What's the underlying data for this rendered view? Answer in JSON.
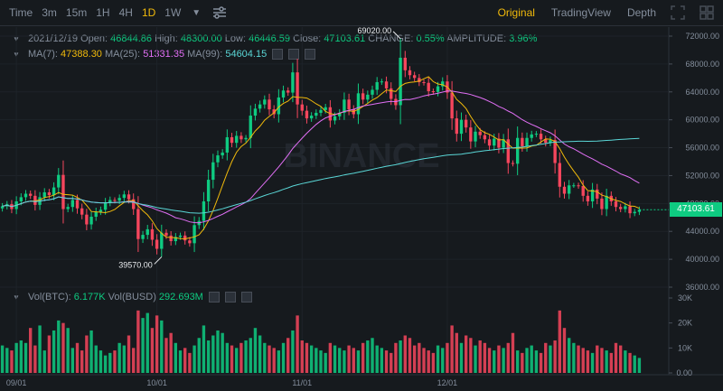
{
  "toolbar": {
    "intervals": [
      "Time",
      "15m",
      "1H",
      "4H",
      "1D",
      "1W"
    ],
    "time_label": "Time",
    "i1": "3m",
    "i2": "15m",
    "i3": "1H",
    "i4": "4H",
    "i5": "1D",
    "i6": "1W",
    "active_interval": "1D",
    "views": {
      "original": "Original",
      "tradingview": "TradingView",
      "depth": "Depth"
    },
    "active_view": "Original",
    "accent_color": "#f0b90b"
  },
  "ohlc": {
    "date": "2021/12/19",
    "open_label": "Open:",
    "open": "46844.86",
    "high_label": "High:",
    "high": "48300.00",
    "low_label": "Low:",
    "low": "46446.59",
    "close_label": "Close:",
    "close": "47103.61",
    "change_label": "CHANGE:",
    "change": "0.55%",
    "amplitude_label": "AMPLITUDE:",
    "amplitude": "3.96%"
  },
  "ma": {
    "ma7_label": "MA(7):",
    "ma7": "47388.30",
    "ma25_label": "MA(25):",
    "ma25": "51331.35",
    "ma99_label": "MA(99):",
    "ma99": "54604.15"
  },
  "volume": {
    "btc_label": "Vol(BTC):",
    "btc": "6.177K",
    "busd_label": "Vol(BUSD)",
    "busd": "292.693M"
  },
  "chart": {
    "watermark": "BINANCE",
    "high_marker": "69020.00",
    "low_marker": "39570.00",
    "current_price": "47103.61",
    "price_ticks": [
      "72000.00",
      "68000.00",
      "64000.00",
      "60000.00",
      "56000.00",
      "52000.00",
      "48000.00",
      "44000.00",
      "40000.00",
      "36000.00"
    ],
    "volume_ticks": [
      "30K",
      "20K",
      "10K",
      "0.00"
    ],
    "date_ticks": [
      "09/01",
      "10/01",
      "11/01",
      "12/01"
    ],
    "colors": {
      "up": "#0ecb81",
      "down": "#f6465d",
      "ma7": "#f0b90b",
      "ma25": "#e16ff5",
      "ma99": "#5ad6d6"
    }
  },
  "chart_data": {
    "type": "candlestick",
    "price_range": [
      36000,
      72000
    ],
    "volume_range": [
      0,
      30000
    ],
    "close": [
      47600,
      47900,
      47200,
      48300,
      48900,
      49400,
      49100,
      47800,
      48900,
      49600,
      49200,
      50300,
      52100,
      47200,
      47500,
      48500,
      47300,
      46400,
      45000,
      46100,
      46800,
      47100,
      48100,
      48500,
      48400,
      48800,
      49300,
      48600,
      47200,
      42900,
      43500,
      44300,
      42800,
      41500,
      43800,
      43400,
      42600,
      43200,
      43400,
      42700,
      42300,
      44900,
      45500,
      48300,
      51400,
      53900,
      54900,
      55300,
      57500,
      56700,
      57700,
      57200,
      57400,
      60600,
      61600,
      62200,
      62900,
      61500,
      60800,
      63200,
      64200,
      63900,
      66800,
      62200,
      61300,
      60200,
      60600,
      61000,
      61400,
      61800,
      59900,
      60500,
      61000,
      62900,
      61500,
      60800,
      63800,
      62900,
      63600,
      64300,
      65400,
      65500,
      64500,
      63000,
      62100,
      68900,
      67100,
      66400,
      66000,
      65400,
      65300,
      64100,
      64000,
      64800,
      65500,
      63900,
      60200,
      58000,
      60000,
      58900,
      56900,
      58300,
      57800,
      57200,
      56300,
      57300,
      56000,
      57200,
      53800,
      53700,
      57400,
      56200,
      57400,
      57900,
      58000,
      57200,
      56700,
      57100,
      53800,
      50400,
      49400,
      50600,
      50600,
      50500,
      49100,
      48300,
      50000,
      48700,
      47200,
      49100,
      48300,
      47500,
      47200,
      47600,
      46600,
      46800,
      47100
    ],
    "volume": [
      11000,
      10000,
      9000,
      12000,
      13000,
      12000,
      18000,
      11000,
      19000,
      9000,
      15000,
      17000,
      21000,
      20000,
      18000,
      10000,
      12000,
      9000,
      15000,
      17000,
      11000,
      9000,
      7000,
      8000,
      9000,
      12000,
      11000,
      15000,
      10000,
      25000,
      22000,
      24000,
      18000,
      23000,
      21000,
      14000,
      16000,
      12000,
      9000,
      10000,
      8000,
      11000,
      14000,
      19000,
      13000,
      15000,
      17000,
      16000,
      12000,
      11000,
      10000,
      12000,
      13000,
      14000,
      18000,
      15000,
      12000,
      11000,
      10000,
      9000,
      12000,
      14000,
      17000,
      23000,
      13000,
      12000,
      11000,
      10000,
      9000,
      8000,
      12000,
      11000,
      10000,
      9000,
      11000,
      10000,
      9000,
      12000,
      13000,
      14000,
      11000,
      10000,
      9000,
      8000,
      12000,
      13000,
      15000,
      14000,
      11000,
      12000,
      10000,
      9000,
      8000,
      11000,
      10000,
      12000,
      19000,
      16000,
      12000,
      15000,
      14000,
      11000,
      13000,
      12000,
      10000,
      9000,
      11000,
      10000,
      12000,
      16000,
      9000,
      8000,
      10000,
      11000,
      9000,
      8000,
      12000,
      11000,
      13000,
      25000,
      18000,
      14000,
      12000,
      11000,
      10000,
      9000,
      8000,
      11000,
      10000,
      9000,
      8000,
      12000,
      11000,
      9000,
      8000,
      7000,
      6000
    ]
  }
}
